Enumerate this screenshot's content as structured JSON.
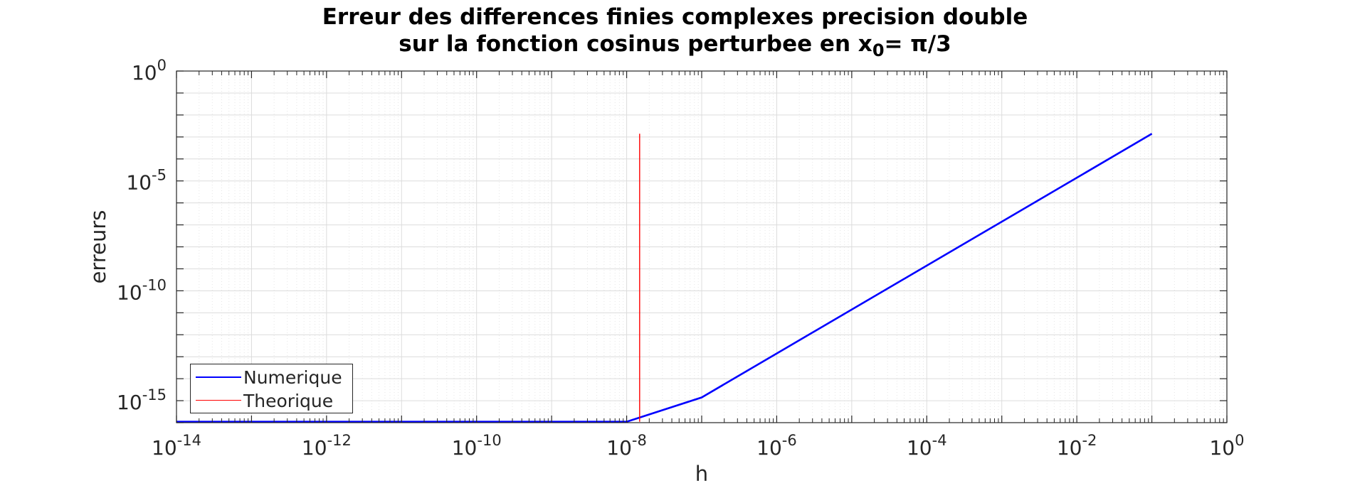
{
  "chart_data": {
    "type": "line",
    "title_line1": "Erreur des differences finies complexes precision double",
    "title_line2_prefix": "sur la fonction cosinus perturbee en x",
    "title_line2_sub": "0",
    "title_line2_suffix": "= π/3",
    "xlabel": "h",
    "ylabel": "erreurs",
    "xscale": "log",
    "yscale": "log",
    "xlim": [
      1e-14,
      1
    ],
    "ylim": [
      1e-16,
      1
    ],
    "grid": true,
    "minor_grid": true,
    "legend_location": "bottom-left",
    "x_tick_exponents": [
      "-14",
      "-12",
      "-10",
      "-8",
      "-6",
      "-4",
      "-2",
      "0"
    ],
    "y_tick_exponents": [
      "0",
      "-5",
      "-10",
      "-15"
    ],
    "tick_base": "10",
    "series": [
      {
        "name": "Numerique",
        "color": "#0000ff",
        "x": [
          1e-14,
          1e-08,
          1e-07,
          0.1
        ],
        "y": [
          1.1e-16,
          1.1e-16,
          1.4e-15,
          0.0014
        ]
      },
      {
        "name": "Theorique",
        "color": "#ff0000",
        "x": [
          1.49e-08,
          1.49e-08
        ],
        "y": [
          1.1e-16,
          0.0014
        ]
      }
    ]
  }
}
